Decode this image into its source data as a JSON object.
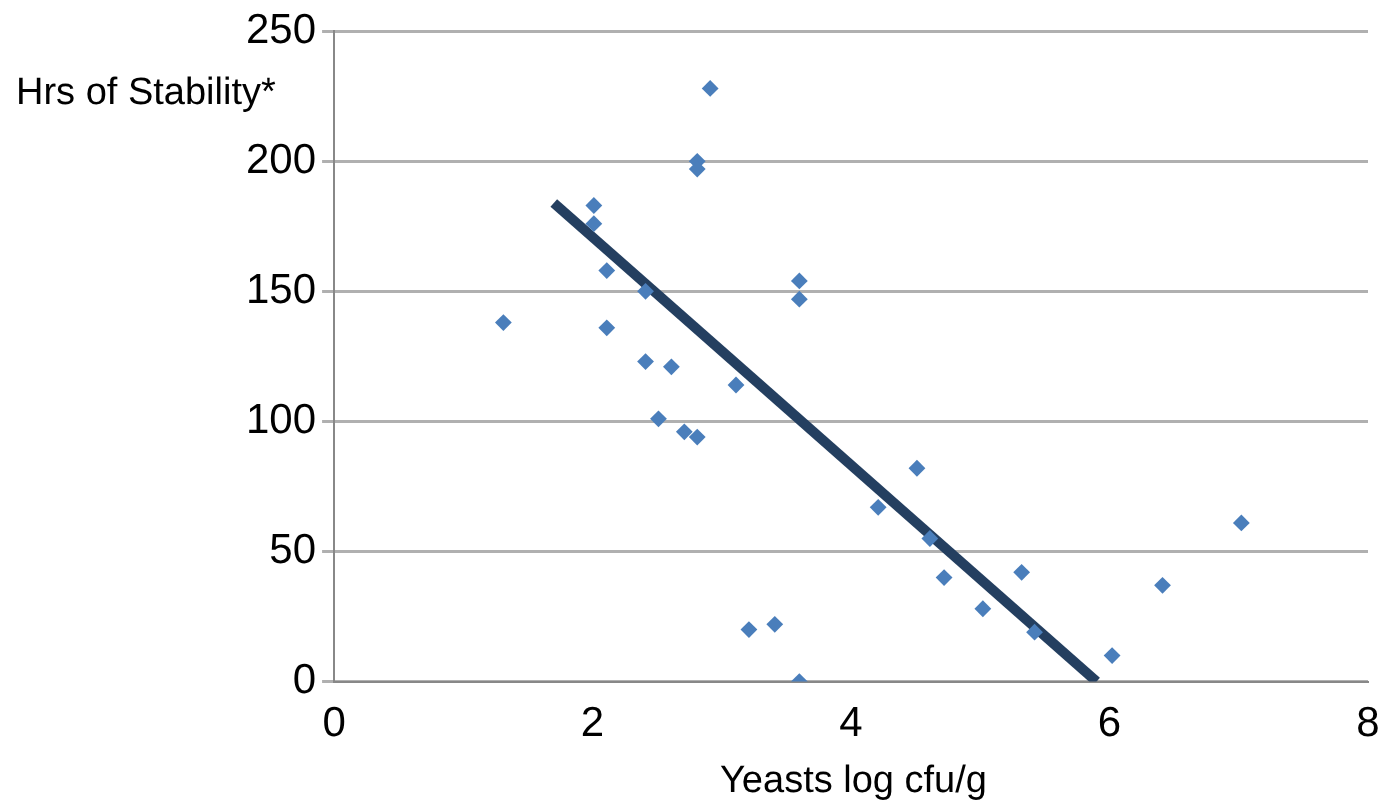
{
  "chart_data": {
    "type": "scatter",
    "xlabel": "Yeasts log cfu/g",
    "ylabel": "Hrs of Stability*",
    "xlim": [
      0,
      8
    ],
    "xticks": [
      0,
      2,
      4,
      6,
      8
    ],
    "ylim": [
      0,
      250
    ],
    "yticks": [
      0,
      50,
      100,
      150,
      200,
      250
    ],
    "grid": "y",
    "legend": false,
    "marker": "diamond",
    "series": [
      {
        "type": "scatter",
        "color": "#4a7ebb",
        "x": [
          1.31,
          2.01,
          2.01,
          2.11,
          2.11,
          2.41,
          2.41,
          2.61,
          2.51,
          2.71,
          2.81,
          2.81,
          2.81,
          2.91,
          3.11,
          3.6,
          3.6,
          3.21,
          3.41,
          3.6,
          4.21,
          4.51,
          4.61,
          4.72,
          5.02,
          5.32,
          5.42,
          6.02,
          6.41,
          7.02
        ],
        "values": [
          138,
          183,
          176,
          158,
          136,
          150,
          123,
          121,
          101,
          96,
          94,
          200,
          197,
          228,
          114,
          154,
          147,
          20,
          22,
          0,
          67,
          82,
          55,
          40,
          28,
          42,
          19,
          10,
          37,
          61
        ]
      },
      {
        "type": "line",
        "color": "#243f60",
        "marker": "none",
        "x": [
          1.7,
          5.9
        ],
        "values": [
          184,
          0
        ]
      }
    ]
  }
}
